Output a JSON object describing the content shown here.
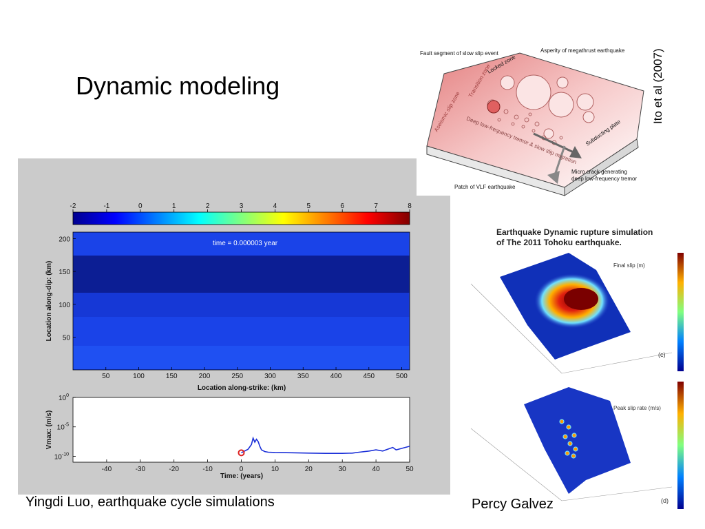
{
  "slide": {
    "title": "Dynamic modeling",
    "credit_left": "Yingdi Luo, earthquake cycle simulations",
    "credit_right": "Percy Galvez",
    "citation": "Ito et al (2007)"
  },
  "schematic": {
    "labels": {
      "fault_segment": "Fault segment of slow slip event",
      "asperity": "Asperity of megathrust earthquake",
      "locked_zone": "Locked zone",
      "transition_zone": "Transition zone",
      "aseismic": "Aseismic slip zone",
      "deep_lf": "Deep low-frequency tremor & slow slip migration",
      "subducting": "Subducting plate",
      "micro_crack": "Micro crack generating",
      "micro_crack2": "deep low-frequency tremor",
      "vlf_patch": "Patch of VLF earthquake"
    }
  },
  "cycle_sim": {
    "colorbar_ticks": [
      "-2",
      "-1",
      "0",
      "1",
      "2",
      "3",
      "4",
      "5",
      "6",
      "7",
      "8"
    ],
    "time_label": "time = 0.000003 year",
    "ylabel_top": "Location along-dip: (km)",
    "xlabel_top": "Location along-strike: (km)",
    "y_ticks_top": [
      "200",
      "150",
      "100",
      "50"
    ],
    "x_ticks_top": [
      "50",
      "100",
      "150",
      "200",
      "250",
      "300",
      "350",
      "400",
      "450",
      "500"
    ],
    "ylabel_bottom": "Vmax: (m/s)",
    "xlabel_bottom": "Time: (years)",
    "x_ticks_bottom": [
      "-40",
      "-30",
      "-20",
      "-10",
      "0",
      "10",
      "20",
      "30",
      "40",
      "50"
    ]
  },
  "tohoku": {
    "title_line1": "Earthquake Dynamic rupture simulation",
    "title_line2": "of The 2011 Tohoku earthquake.",
    "panel_c_label": "Final slip (m)",
    "panel_c_tag": "(c)",
    "panel_d_label": "Peak slip rate (m/s)",
    "panel_d_tag": "(d)"
  },
  "chart_data": {
    "type": "line",
    "xlabel": "Time: (years)",
    "ylabel": "Vmax: (m/s)",
    "xlim": [
      -50,
      50
    ],
    "ylim_log10": [
      -11,
      0
    ],
    "y_scale": "log",
    "series": [
      {
        "x": [
          0,
          2,
          3,
          3.5,
          4,
          4.5,
          5,
          5.5,
          6,
          7,
          8,
          10,
          15,
          20,
          25,
          30,
          33,
          35,
          38,
          40,
          42,
          44,
          45,
          46,
          48,
          50
        ],
        "y_log10": [
          -9.4,
          -8.8,
          -8.0,
          -6.9,
          -7.6,
          -7.1,
          -7.5,
          -8.3,
          -8.9,
          -9.2,
          -9.3,
          -9.35,
          -9.4,
          -9.45,
          -9.5,
          -9.5,
          -9.45,
          -9.3,
          -9.1,
          -8.9,
          -9.1,
          -8.7,
          -8.5,
          -8.9,
          -8.6,
          -8.3
        ]
      }
    ],
    "marker": {
      "x": 0,
      "y_log10": -9.4,
      "color": "#dd2222"
    }
  }
}
